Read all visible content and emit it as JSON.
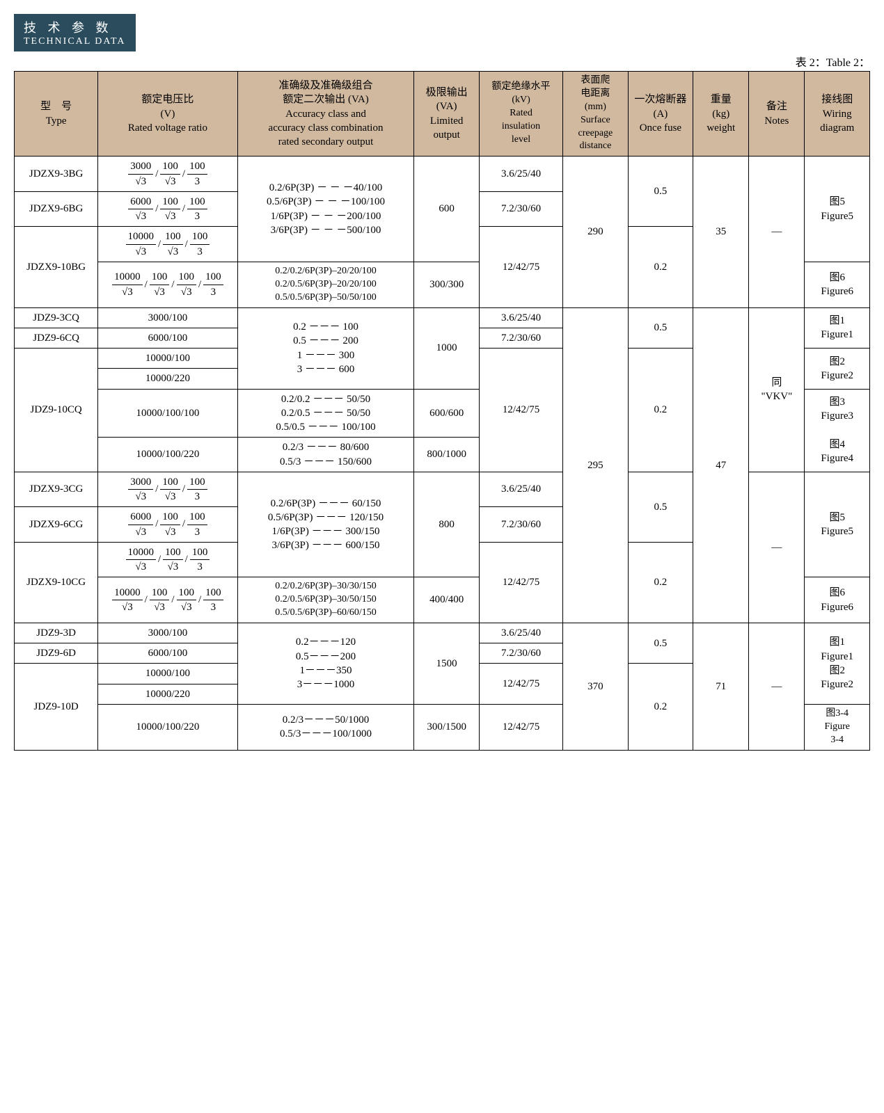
{
  "header": {
    "cn": "技 术 参 数",
    "en": "TECHNICAL DATA"
  },
  "caption": "表 2：Table 2：",
  "columns": {
    "type": "型　号\nType",
    "ratio": "额定电压比\n(V)\nRated voltage ratio",
    "accuracy": "准确级及准确级组合\n额定二次输出 (VA)\nAccuracy class and\naccuracy class combination\nrated secondary output",
    "limit": "极限输出\n(VA)\nLimited\noutput",
    "insul": "额定绝缘水平\n(kV)\nRated\ninsulation\nlevel",
    "creep": "表面爬\n电距离\n(mm)\nSurface\ncreepage\ndistance",
    "fuse": "一次熔断器\n(A)\nOnce fuse",
    "weight": "重量\n(kg)\nweight",
    "notes": "备注\nNotes",
    "wiring": "接线图\nWiring\ndiagram"
  },
  "ratios": {
    "f3_3": [
      [
        "3000",
        "√3"
      ],
      [
        "100",
        "√3"
      ],
      [
        "100",
        "3"
      ]
    ],
    "f6_3": [
      [
        "6000",
        "√3"
      ],
      [
        "100",
        "√3"
      ],
      [
        "100",
        "3"
      ]
    ],
    "f10_3": [
      [
        "10000",
        "√3"
      ],
      [
        "100",
        "√3"
      ],
      [
        "100",
        "3"
      ]
    ],
    "f10_4": [
      [
        "10000",
        "√3"
      ],
      [
        "100",
        "√3"
      ],
      [
        "100",
        "√3"
      ],
      [
        "100",
        "3"
      ]
    ]
  },
  "txt": {
    "t_3BG": "JDZX9-3BG",
    "t_6BG": "JDZX9-6BG",
    "t_10BG": "JDZX9-10BG",
    "t_3CQ": "JDZ9-3CQ",
    "t_6CQ": "JDZ9-6CQ",
    "t_10CQ": "JDZ9-10CQ",
    "t_3CG": "JDZX9-3CG",
    "t_6CG": "JDZX9-6CG",
    "t_10CG": "JDZX9-10CG",
    "t_3D": "JDZ9-3D",
    "t_6D": "JDZ9-6D",
    "t_10D": "JDZ9-10D",
    "r_3000_100": "3000/100",
    "r_6000_100": "6000/100",
    "r_10000_100": "10000/100",
    "r_10000_220": "10000/220",
    "r_10000_100_100": "10000/100/100",
    "r_10000_100_220": "10000/100/220",
    "acc_BG": "0.2/6P(3P) － － －40/100\n0.5/6P(3P) － － －100/100\n1/6P(3P) － － －200/100\n3/6P(3P) － － －500/100",
    "acc_BG2": "0.2/0.2/6P(3P)–20/20/100\n0.2/0.5/6P(3P)–20/20/100\n0.5/0.5/6P(3P)–50/50/100",
    "acc_CQ": "0.2 －－－ 100\n0.5 －－－ 200\n1 －－－ 300\n3 －－－ 600",
    "acc_CQ2": "0.2/0.2 －－－ 50/50\n0.2/0.5 －－－ 50/50\n0.5/0.5 －－－ 100/100",
    "acc_CQ3": "0.2/3 －－－ 80/600\n0.5/3 －－－ 150/600",
    "acc_CG": "0.2/6P(3P) －－－ 60/150\n0.5/6P(3P) －－－ 120/150\n1/6P(3P) －－－ 300/150\n3/6P(3P) －－－ 600/150",
    "acc_CG2": "0.2/0.2/6P(3P)–30/30/150\n0.2/0.5/6P(3P)–30/50/150\n0.5/0.5/6P(3P)–60/60/150",
    "acc_D": "0.2－－－120\n0.5－－－200\n1－－－350\n3－－－1000",
    "acc_D2": "0.2/3－－－50/1000\n0.5/3－－－100/1000",
    "lim_600": "600",
    "lim_300_300": "300/300",
    "lim_1000": "1000",
    "lim_600_600": "600/600",
    "lim_800_1000": "800/1000",
    "lim_800": "800",
    "lim_400_400": "400/400",
    "lim_1500": "1500",
    "lim_300_1500": "300/1500",
    "ins_3": "3.6/25/40",
    "ins_7": "7.2/30/60",
    "ins_12": "12/42/75",
    "creep_290": "290",
    "creep_295": "295",
    "creep_370": "370",
    "fuse_05": "0.5",
    "fuse_02": "0.2",
    "w_35": "35",
    "w_47": "47",
    "w_71": "71",
    "dash": "—",
    "vkv": "同\n\"VKV\"",
    "fig5": "图5\nFigure5",
    "fig6": "图6\nFigure6",
    "fig1": "图1\nFigure1",
    "fig2": "图2\nFigure2",
    "fig3": "图3\nFigure3",
    "fig4": "图4\nFigure4",
    "fig12": "图1\nFigure1\n图2\nFigure2",
    "fig34s": "图3-4\nFigure\n3-4",
    "fig34": "图3\nFigure3\n\n图4\nFigure4"
  }
}
